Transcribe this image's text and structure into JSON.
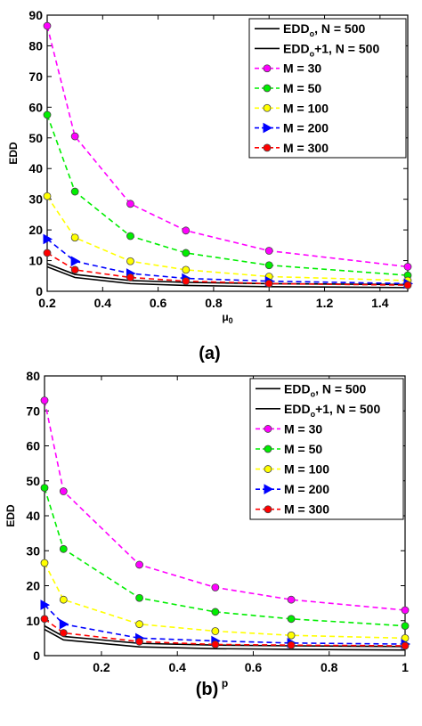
{
  "chart_data": [
    {
      "type": "line",
      "panel_label": "(a)",
      "xlabel": "μ",
      "xlabel_sub": "0",
      "ylabel": "EDD",
      "xlim": [
        0.2,
        1.5
      ],
      "ylim": [
        0,
        90
      ],
      "xticks": [
        0.2,
        0.4,
        0.6,
        0.8,
        1,
        1.2,
        1.4
      ],
      "xtick_labels": [
        "0.2",
        "0.4",
        "0.6",
        "0.8",
        "1",
        "1.2",
        "1.4"
      ],
      "yticks": [
        0,
        10,
        20,
        30,
        40,
        50,
        60,
        70,
        80,
        90
      ],
      "ytick_labels": [
        "0",
        "10",
        "20",
        "30",
        "40",
        "50",
        "60",
        "70",
        "80",
        "90"
      ],
      "x": [
        0.2,
        0.3,
        0.5,
        0.7,
        1.0,
        1.5
      ],
      "legend_position": "top-right",
      "series": [
        {
          "name": "EDD",
          "name_sub": "o",
          "name_suffix": ", N = 500",
          "color": "#000000",
          "style": "solid",
          "marker": "none",
          "values": [
            8.0,
            4.5,
            2.5,
            1.9,
            1.5,
            1.2
          ]
        },
        {
          "name": "EDD",
          "name_sub": "o",
          "name_suffix": "+1, N = 500",
          "color": "#000000",
          "style": "solid",
          "marker": "none",
          "values": [
            9.0,
            5.5,
            3.5,
            2.9,
            2.5,
            2.2
          ]
        },
        {
          "name": "M = 30",
          "color": "#ff00ff",
          "style": "dashed",
          "marker": "circle",
          "values": [
            86.5,
            50.5,
            28.5,
            19.8,
            13.2,
            8.0
          ]
        },
        {
          "name": "M = 50",
          "color": "#00ee00",
          "style": "dashed",
          "marker": "circle",
          "values": [
            57.5,
            32.5,
            18.0,
            12.5,
            8.5,
            5.2
          ]
        },
        {
          "name": "M = 100",
          "color": "#ffff00",
          "style": "dashed",
          "marker": "circle",
          "values": [
            31.0,
            17.5,
            9.8,
            7.0,
            4.8,
            3.5
          ]
        },
        {
          "name": "M = 200",
          "color": "#0000ff",
          "style": "dashed",
          "marker": "triangle-right",
          "values": [
            17.0,
            9.8,
            5.8,
            4.2,
            3.3,
            2.5
          ]
        },
        {
          "name": "M = 300",
          "color": "#ff0000",
          "style": "dashed",
          "marker": "circle",
          "values": [
            12.5,
            7.0,
            4.5,
            3.3,
            2.5,
            2.0
          ]
        }
      ]
    },
    {
      "type": "line",
      "panel_label": "(b)",
      "xlabel": "p",
      "xlabel_sub": "",
      "ylabel": "EDD",
      "xlim": [
        0.05,
        1.0
      ],
      "ylim": [
        0,
        80
      ],
      "xticks": [
        0.2,
        0.4,
        0.6,
        0.8,
        1
      ],
      "xtick_labels": [
        "0.2",
        "0.4",
        "0.6",
        "0.8",
        "1"
      ],
      "yticks": [
        0,
        10,
        20,
        30,
        40,
        50,
        60,
        70,
        80
      ],
      "ytick_labels": [
        "0",
        "10",
        "20",
        "30",
        "40",
        "50",
        "60",
        "70",
        "80"
      ],
      "x": [
        0.05,
        0.1,
        0.3,
        0.5,
        0.7,
        1.0
      ],
      "legend_position": "top-right",
      "series": [
        {
          "name": "EDD",
          "name_sub": "o",
          "name_suffix": ", N = 500",
          "color": "#000000",
          "style": "solid",
          "marker": "none",
          "values": [
            7.5,
            4.5,
            2.5,
            2.0,
            1.8,
            1.6
          ]
        },
        {
          "name": "EDD",
          "name_sub": "o",
          "name_suffix": "+1, N = 500",
          "color": "#000000",
          "style": "solid",
          "marker": "none",
          "values": [
            8.5,
            5.5,
            3.5,
            3.0,
            2.8,
            2.6
          ]
        },
        {
          "name": "M = 30",
          "color": "#ff00ff",
          "style": "dashed",
          "marker": "circle",
          "values": [
            73.0,
            47.0,
            26.0,
            19.5,
            16.0,
            13.0
          ]
        },
        {
          "name": "M = 50",
          "color": "#00ee00",
          "style": "dashed",
          "marker": "circle",
          "values": [
            48.0,
            30.5,
            16.5,
            12.5,
            10.5,
            8.5
          ]
        },
        {
          "name": "M = 100",
          "color": "#ffff00",
          "style": "dashed",
          "marker": "circle",
          "values": [
            26.5,
            16.0,
            9.0,
            7.0,
            5.8,
            5.0
          ]
        },
        {
          "name": "M = 200",
          "color": "#0000ff",
          "style": "dashed",
          "marker": "triangle-right",
          "values": [
            14.5,
            9.0,
            5.0,
            4.2,
            3.6,
            3.3
          ]
        },
        {
          "name": "M = 300",
          "color": "#ff0000",
          "style": "dashed",
          "marker": "circle",
          "values": [
            10.5,
            6.5,
            4.0,
            3.2,
            3.0,
            2.8
          ]
        }
      ]
    }
  ]
}
